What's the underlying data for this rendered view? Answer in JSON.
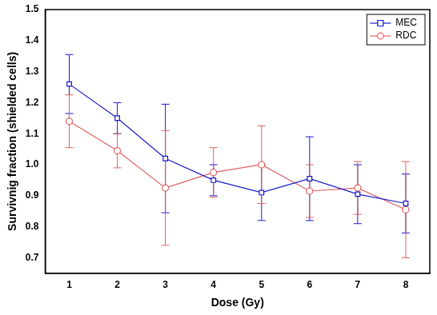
{
  "chart_data": {
    "type": "line",
    "x_label": "Dose (Gy)",
    "y_label": "Survivnig fraction (shielded cells)",
    "x": [
      1,
      2,
      3,
      4,
      5,
      6,
      7,
      8
    ],
    "series": [
      {
        "name": "MEC",
        "color": "#1a1acc",
        "marker": "square",
        "line_style": "solid",
        "values": [
          1.26,
          1.15,
          1.02,
          0.95,
          0.91,
          0.955,
          0.905,
          0.875
        ],
        "errors": [
          0.095,
          0.05,
          0.175,
          0.05,
          0.09,
          0.135,
          0.095,
          0.095
        ]
      },
      {
        "name": "RDC",
        "color": "#e06060",
        "marker": "circle",
        "line_style": "solid",
        "values": [
          1.14,
          1.045,
          0.925,
          0.975,
          1.0,
          0.915,
          0.925,
          0.855
        ],
        "errors": [
          0.085,
          0.055,
          0.185,
          0.08,
          0.125,
          0.085,
          0.085,
          0.155
        ]
      }
    ],
    "xlim": [
      0.5,
      8.5
    ],
    "xticks": [
      1,
      2,
      3,
      4,
      5,
      6,
      7,
      8
    ],
    "ylim": [
      0.65,
      1.5
    ],
    "yticks": [
      0.7,
      0.8,
      0.9,
      {
        "value": 1,
        "label": "1.0"
      },
      1.1,
      1.2,
      1.3,
      1.4,
      1.5
    ],
    "grid": false,
    "legend": "upper right"
  }
}
